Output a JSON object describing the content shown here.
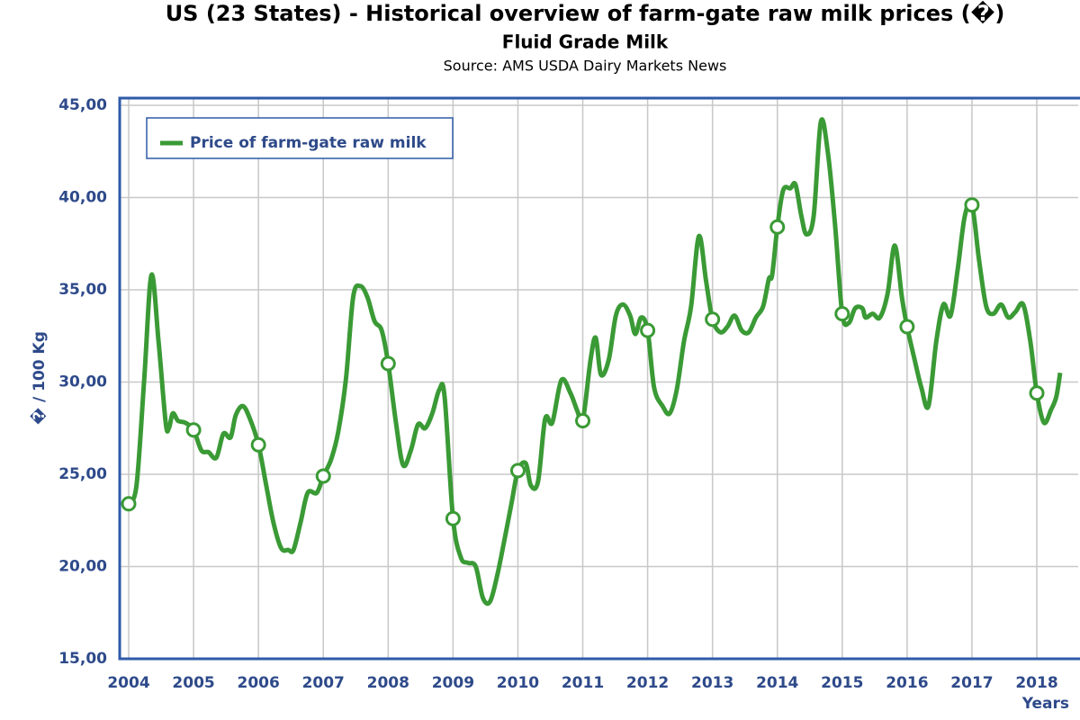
{
  "chart_data": {
    "type": "line",
    "title": "US (23 States) - Historical overview of farm-gate raw milk prices (�)",
    "subtitle": "Fluid Grade Milk",
    "source": "Source: AMS USDA Dairy Markets News",
    "y_label": "� / 100 Kg",
    "x_label": "Years",
    "xlim": [
      2003.861,
      2018.638
    ],
    "ylim": [
      15,
      45.39
    ],
    "xticks": [
      2004,
      2005,
      2006,
      2007,
      2008,
      2009,
      2010,
      2011,
      2012,
      2013,
      2014,
      2015,
      2016,
      2017,
      2018
    ],
    "yticks": [
      {
        "value": 15,
        "label": "15,00"
      },
      {
        "value": 20,
        "label": "20,00"
      },
      {
        "value": 25,
        "label": "25,00"
      },
      {
        "value": 30,
        "label": "30,00"
      },
      {
        "value": 35,
        "label": "35,00"
      },
      {
        "value": 40,
        "label": "40,00"
      },
      {
        "value": 45,
        "label": "45,00"
      }
    ],
    "grid": true,
    "legend": "top-left",
    "x": [
      2004,
      2004.12,
      2004.24,
      2004.35,
      2004.46,
      2004.57,
      2004.62,
      2004.68,
      2004.76,
      2004.87,
      2005,
      2005.12,
      2005.23,
      2005.35,
      2005.46,
      2005.57,
      2005.65,
      2005.76,
      2005.87,
      2006,
      2006.12,
      2006.23,
      2006.35,
      2006.46,
      2006.54,
      2006.65,
      2006.76,
      2006.9,
      2007,
      2007.12,
      2007.23,
      2007.35,
      2007.46,
      2007.57,
      2007.68,
      2007.79,
      2007.9,
      2008,
      2008.12,
      2008.23,
      2008.35,
      2008.46,
      2008.57,
      2008.68,
      2008.79,
      2008.87,
      2009,
      2009.12,
      2009.23,
      2009.35,
      2009.46,
      2009.57,
      2009.68,
      2009.79,
      2009.9,
      2010,
      2010.12,
      2010.2,
      2010.31,
      2010.42,
      2010.53,
      2010.67,
      2010.81,
      2010.92,
      2011,
      2011.12,
      2011.2,
      2011.28,
      2011.4,
      2011.51,
      2011.62,
      2011.73,
      2011.81,
      2011.9,
      2012,
      2012.1,
      2012.23,
      2012.34,
      2012.45,
      2012.56,
      2012.67,
      2012.79,
      2012.9,
      2013,
      2013.12,
      2013.23,
      2013.34,
      2013.45,
      2013.56,
      2013.67,
      2013.78,
      2013.87,
      2013.92,
      2014,
      2014.09,
      2014.2,
      2014.28,
      2014.37,
      2014.45,
      2014.56,
      2014.67,
      2014.78,
      2014.89,
      2015,
      2015.1,
      2015.2,
      2015.31,
      2015.36,
      2015.47,
      2015.58,
      2015.7,
      2015.81,
      2015.92,
      2016,
      2016.11,
      2016.22,
      2016.33,
      2016.45,
      2016.56,
      2016.67,
      2016.78,
      2016.89,
      2017,
      2017.11,
      2017.22,
      2017.33,
      2017.45,
      2017.56,
      2017.67,
      2017.79,
      2017.9,
      2018,
      2018.11,
      2018.22,
      2018.3,
      2018.36
    ],
    "series": [
      {
        "name": "Price of farm-gate raw milk",
        "color": "#3a9a35",
        "values": [
          23.4,
          24.4,
          30.2,
          35.8,
          32.2,
          27.8,
          27.5,
          28.3,
          27.9,
          27.8,
          27.4,
          26.3,
          26.2,
          25.9,
          27.2,
          27.0,
          28.2,
          28.7,
          28.0,
          26.6,
          24.4,
          22.4,
          21.0,
          20.9,
          20.9,
          22.4,
          24.0,
          24.0,
          24.9,
          25.8,
          27.3,
          30.2,
          34.6,
          35.2,
          34.6,
          33.3,
          32.8,
          31.0,
          27.8,
          25.5,
          26.3,
          27.7,
          27.5,
          28.3,
          29.6,
          29.2,
          22.6,
          20.5,
          20.2,
          20.0,
          18.3,
          18.1,
          19.5,
          21.4,
          23.4,
          25.2,
          25.6,
          24.4,
          24.6,
          28.0,
          27.8,
          30.1,
          29.4,
          28.4,
          27.9,
          31.2,
          32.4,
          30.4,
          31.2,
          33.6,
          34.2,
          33.6,
          32.6,
          33.5,
          32.8,
          29.7,
          28.7,
          28.3,
          29.6,
          32.2,
          34.1,
          37.9,
          35.5,
          33.4,
          32.7,
          33.0,
          33.6,
          32.8,
          32.7,
          33.5,
          34.1,
          35.6,
          35.8,
          38.4,
          40.4,
          40.5,
          40.7,
          39.0,
          38.0,
          39.0,
          44.1,
          42.4,
          38.5,
          33.7,
          33.2,
          34.0,
          34.0,
          33.5,
          33.7,
          33.5,
          34.8,
          37.4,
          34.6,
          33.0,
          31.3,
          29.7,
          28.7,
          32.2,
          34.2,
          33.6,
          36.1,
          39.0,
          39.6,
          36.6,
          34.1,
          33.7,
          34.2,
          33.5,
          33.8,
          34.2,
          32.2,
          29.4,
          27.8,
          28.5,
          29.2,
          30.5
        ]
      }
    ]
  }
}
